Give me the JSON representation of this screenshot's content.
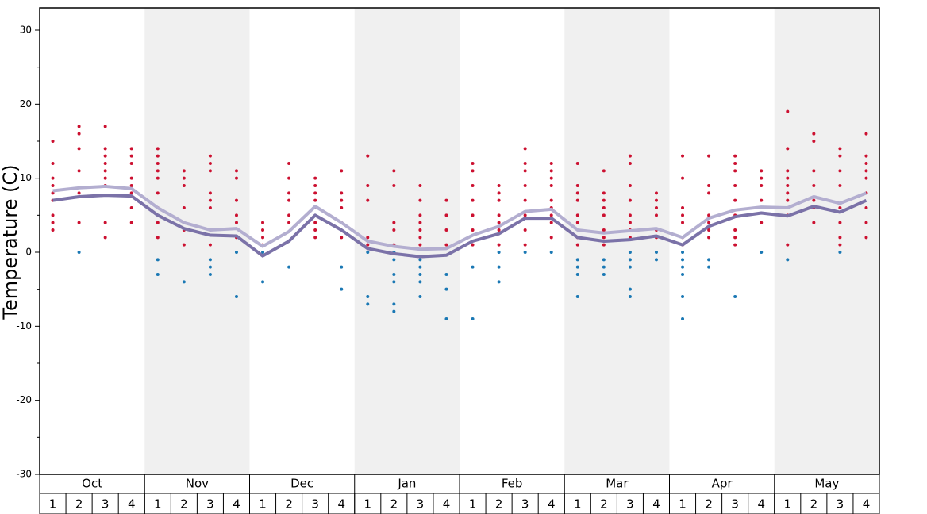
{
  "chart_data": {
    "type": "scatter",
    "y_label": "Temperature (C)",
    "ylim": [
      -30,
      33
    ],
    "yticks": [
      -30,
      -20,
      -10,
      0,
      10,
      20,
      30
    ],
    "yminorticks": [
      -25,
      -15,
      -5,
      5,
      15,
      25
    ],
    "months": [
      "Oct",
      "Nov",
      "Dec",
      "Jan",
      "Feb",
      "Mar",
      "Apr",
      "May"
    ],
    "categories": [
      "1",
      "2",
      "3",
      "4",
      "1",
      "2",
      "3",
      "4",
      "1",
      "2",
      "3",
      "4",
      "1",
      "2",
      "3",
      "4",
      "1",
      "2",
      "3",
      "4",
      "1",
      "2",
      "3",
      "4",
      "1",
      "2",
      "3",
      "4",
      "1",
      "2",
      "3",
      "4"
    ],
    "shade_color": "#f0f0f0",
    "series": [
      {
        "color": "#b3aed0",
        "values": [
          8.3,
          8.7,
          8.9,
          8.6,
          6.0,
          4.0,
          3.0,
          3.2,
          0.8,
          2.8,
          6.2,
          4.0,
          1.5,
          0.8,
          0.4,
          0.5,
          2.3,
          3.5,
          5.5,
          5.8,
          3.0,
          2.6,
          2.9,
          3.2,
          2.0,
          4.6,
          5.7,
          6.1,
          6.0,
          7.5,
          6.6,
          8.0
        ]
      },
      {
        "color": "#7b72a8",
        "values": [
          7.0,
          7.5,
          7.7,
          7.6,
          5.0,
          3.2,
          2.3,
          2.2,
          -0.5,
          1.5,
          5.0,
          3.0,
          0.5,
          -0.2,
          -0.6,
          -0.4,
          1.5,
          2.5,
          4.6,
          4.6,
          2.0,
          1.5,
          1.7,
          2.2,
          1.0,
          3.5,
          4.8,
          5.3,
          4.9,
          6.2,
          5.4,
          7.0
        ]
      }
    ],
    "dots": [
      {
        "color": "#cc1030",
        "values": [
          [
            15,
            12,
            10,
            9,
            8,
            7,
            5,
            4,
            3
          ],
          [
            17,
            16,
            14,
            11,
            8,
            4
          ],
          [
            17,
            14,
            13,
            12,
            11,
            10,
            9,
            4,
            2
          ],
          [
            14,
            13,
            12,
            10,
            9,
            8,
            6,
            4
          ],
          [
            14,
            13,
            12,
            11,
            10,
            8,
            6,
            4,
            2
          ],
          [
            11,
            10,
            9,
            6,
            4,
            3,
            1
          ],
          [
            13,
            12,
            11,
            8,
            7,
            6,
            3,
            1
          ],
          [
            11,
            10,
            7,
            5,
            4,
            2
          ],
          [
            4,
            3,
            2,
            1
          ],
          [
            12,
            10,
            8,
            7,
            5,
            4
          ],
          [
            10,
            9,
            8,
            7,
            6,
            4,
            3,
            2
          ],
          [
            11,
            8,
            7,
            6,
            4,
            2
          ],
          [
            13,
            9,
            7,
            2,
            1
          ],
          [
            11,
            9,
            4,
            3,
            1
          ],
          [
            9,
            7,
            5,
            4,
            3,
            2,
            1
          ],
          [
            7,
            5,
            3,
            1
          ],
          [
            12,
            11,
            9,
            7,
            5,
            3,
            1
          ],
          [
            9,
            8,
            7,
            5,
            4,
            3,
            1
          ],
          [
            14,
            12,
            11,
            9,
            7,
            5,
            3,
            1
          ],
          [
            12,
            11,
            10,
            9,
            7,
            6,
            5,
            4,
            2
          ],
          [
            12,
            9,
            8,
            7,
            5,
            4,
            2,
            1
          ],
          [
            11,
            8,
            7,
            6,
            5,
            3,
            2,
            1
          ],
          [
            13,
            12,
            9,
            7,
            5,
            4,
            3,
            2
          ],
          [
            8,
            7,
            6,
            5,
            3,
            2
          ],
          [
            13,
            10,
            6,
            5,
            4,
            2,
            1
          ],
          [
            13,
            9,
            8,
            5,
            4,
            3,
            2
          ],
          [
            13,
            12,
            11,
            9,
            7,
            5,
            3,
            2,
            1
          ],
          [
            11,
            10,
            9,
            7,
            4
          ],
          [
            19,
            14,
            11,
            10,
            9,
            8,
            7,
            5,
            1
          ],
          [
            16,
            15,
            11,
            9,
            7,
            6,
            4
          ],
          [
            14,
            13,
            11,
            9,
            6,
            4,
            2,
            1
          ],
          [
            16,
            13,
            12,
            11,
            10,
            8,
            6,
            4,
            2
          ]
        ]
      },
      {
        "color": "#1a78b4",
        "values": [
          [],
          [
            0
          ],
          [],
          [],
          [
            -1,
            -3
          ],
          [
            -4
          ],
          [
            -1,
            -2,
            -3
          ],
          [
            0,
            -6
          ],
          [
            0,
            -4
          ],
          [
            -2
          ],
          [],
          [
            -2,
            -5
          ],
          [
            0,
            -6,
            -7
          ],
          [
            0,
            -1,
            -3,
            -4,
            -7,
            -8
          ],
          [
            -1,
            -2,
            -3,
            -4,
            -6
          ],
          [
            -3,
            -5,
            -9
          ],
          [
            -2,
            -9
          ],
          [
            0,
            -2,
            -4
          ],
          [
            0
          ],
          [
            0
          ],
          [
            -1,
            -2,
            -3,
            -6
          ],
          [
            -1,
            -2,
            -3
          ],
          [
            0,
            -1,
            -2,
            -5,
            -6
          ],
          [
            0,
            -1
          ],
          [
            0,
            -1,
            -2,
            -3,
            -6,
            -9
          ],
          [
            -1,
            -2
          ],
          [
            -6
          ],
          [
            0
          ],
          [
            -1
          ],
          [],
          [
            0
          ],
          []
        ]
      }
    ]
  }
}
